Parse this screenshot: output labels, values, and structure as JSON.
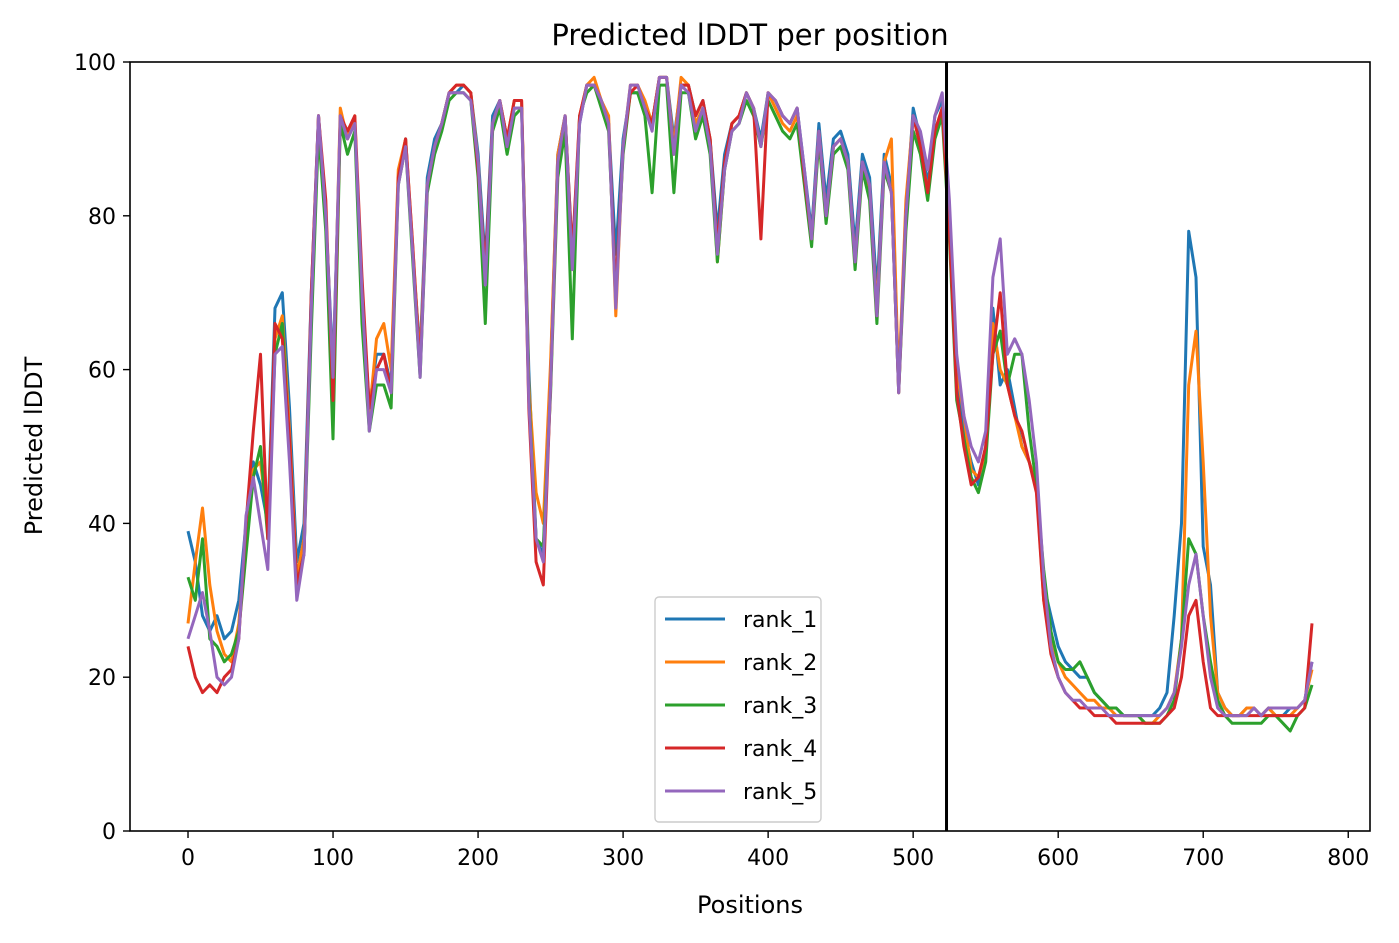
{
  "chart_data": {
    "type": "line",
    "title": "Predicted lDDT per position",
    "xlabel": "Positions",
    "ylabel": "Predicted lDDT",
    "xlim": [
      -40,
      815
    ],
    "ylim": [
      0,
      100
    ],
    "xticks": [
      0,
      100,
      200,
      300,
      400,
      500,
      600,
      700,
      800
    ],
    "yticks": [
      0,
      20,
      40,
      60,
      80,
      100
    ],
    "grid": false,
    "legend_position": "lower-center",
    "vertical_line": {
      "x": 523,
      "color": "#000000"
    },
    "x": [
      0,
      5,
      10,
      15,
      20,
      25,
      30,
      35,
      40,
      45,
      50,
      55,
      60,
      65,
      70,
      75,
      80,
      85,
      90,
      95,
      100,
      105,
      110,
      115,
      120,
      125,
      130,
      135,
      140,
      145,
      150,
      155,
      160,
      165,
      170,
      175,
      180,
      185,
      190,
      195,
      200,
      205,
      210,
      215,
      220,
      225,
      230,
      235,
      240,
      245,
      250,
      255,
      260,
      265,
      270,
      275,
      280,
      285,
      290,
      295,
      300,
      305,
      310,
      315,
      320,
      325,
      330,
      335,
      340,
      345,
      350,
      355,
      360,
      365,
      370,
      375,
      380,
      385,
      390,
      395,
      400,
      405,
      410,
      415,
      420,
      425,
      430,
      435,
      440,
      445,
      450,
      455,
      460,
      465,
      470,
      475,
      480,
      485,
      490,
      495,
      500,
      505,
      510,
      515,
      520,
      525,
      530,
      535,
      540,
      545,
      550,
      555,
      560,
      565,
      570,
      575,
      580,
      585,
      590,
      595,
      600,
      605,
      610,
      615,
      620,
      625,
      630,
      635,
      640,
      645,
      650,
      655,
      660,
      665,
      670,
      675,
      680,
      685,
      690,
      695,
      700,
      705,
      710,
      715,
      720,
      725,
      730,
      735,
      740,
      745,
      750,
      755,
      760,
      765,
      770,
      775
    ],
    "series": [
      {
        "name": "rank_1",
        "color": "#1f77b4",
        "values": [
          39,
          35,
          28,
          26,
          28,
          25,
          26,
          30,
          40,
          48,
          45,
          40,
          68,
          70,
          55,
          35,
          40,
          70,
          93,
          80,
          60,
          92,
          90,
          92,
          70,
          55,
          62,
          62,
          58,
          85,
          90,
          75,
          62,
          85,
          90,
          92,
          96,
          96,
          97,
          96,
          88,
          74,
          93,
          95,
          90,
          94,
          94,
          60,
          38,
          36,
          60,
          88,
          93,
          75,
          92,
          97,
          97,
          95,
          92,
          75,
          90,
          96,
          96,
          94,
          92,
          98,
          98,
          90,
          97,
          97,
          93,
          95,
          90,
          78,
          88,
          92,
          93,
          96,
          94,
          90,
          96,
          95,
          93,
          92,
          94,
          86,
          78,
          92,
          82,
          90,
          91,
          88,
          76,
          88,
          85,
          70,
          88,
          84,
          58,
          80,
          94,
          90,
          84,
          93,
          95,
          80,
          58,
          52,
          48,
          45,
          50,
          68,
          58,
          60,
          55,
          50,
          48,
          45,
          32,
          28,
          24,
          22,
          21,
          20,
          20,
          18,
          17,
          16,
          16,
          15,
          15,
          15,
          15,
          15,
          16,
          18,
          28,
          40,
          78,
          72,
          37,
          32,
          18,
          16,
          15,
          15,
          16,
          16,
          15,
          16,
          15,
          15,
          16,
          16,
          17,
          22
        ]
      },
      {
        "name": "rank_2",
        "color": "#ff7f0e",
        "values": [
          27,
          35,
          42,
          32,
          26,
          23,
          22,
          27,
          38,
          47,
          48,
          40,
          64,
          67,
          52,
          33,
          38,
          68,
          93,
          80,
          58,
          94,
          90,
          93,
          68,
          54,
          64,
          66,
          60,
          86,
          90,
          76,
          61,
          84,
          89,
          92,
          96,
          97,
          97,
          96,
          87,
          72,
          92,
          95,
          90,
          95,
          95,
          58,
          44,
          40,
          61,
          88,
          93,
          73,
          93,
          97,
          98,
          95,
          93,
          67,
          89,
          97,
          97,
          95,
          92,
          98,
          98,
          89,
          98,
          97,
          92,
          94,
          90,
          74,
          86,
          92,
          93,
          96,
          94,
          89,
          96,
          94,
          92,
          91,
          93,
          85,
          77,
          91,
          80,
          89,
          90,
          87,
          74,
          87,
          83,
          68,
          87,
          90,
          58,
          82,
          93,
          89,
          83,
          91,
          94,
          78,
          60,
          54,
          47,
          46,
          49,
          66,
          60,
          58,
          54,
          50,
          48,
          45,
          30,
          25,
          22,
          20,
          19,
          18,
          17,
          17,
          16,
          16,
          15,
          15,
          15,
          15,
          14,
          14,
          15,
          16,
          18,
          25,
          58,
          65,
          48,
          28,
          18,
          16,
          15,
          15,
          16,
          16,
          15,
          16,
          15,
          15,
          15,
          16,
          17,
          21
        ]
      },
      {
        "name": "rank_3",
        "color": "#2ca02c",
        "values": [
          33,
          30,
          38,
          25,
          24,
          22,
          23,
          26,
          36,
          46,
          50,
          38,
          62,
          66,
          50,
          32,
          36,
          65,
          91,
          78,
          51,
          92,
          88,
          91,
          66,
          52,
          58,
          58,
          55,
          84,
          89,
          74,
          59,
          83,
          88,
          91,
          95,
          96,
          96,
          95,
          85,
          66,
          91,
          94,
          88,
          93,
          94,
          57,
          38,
          37,
          57,
          85,
          91,
          64,
          93,
          96,
          97,
          94,
          91,
          70,
          88,
          96,
          96,
          93,
          83,
          97,
          97,
          83,
          96,
          96,
          90,
          93,
          88,
          74,
          86,
          91,
          92,
          95,
          93,
          89,
          95,
          93,
          91,
          90,
          92,
          84,
          76,
          90,
          79,
          88,
          89,
          86,
          73,
          86,
          82,
          66,
          86,
          83,
          57,
          78,
          91,
          88,
          82,
          90,
          93,
          77,
          56,
          51,
          46,
          44,
          48,
          62,
          65,
          58,
          62,
          62,
          52,
          45,
          34,
          26,
          22,
          21,
          21,
          22,
          20,
          18,
          17,
          16,
          16,
          15,
          15,
          15,
          14,
          14,
          14,
          15,
          17,
          25,
          38,
          36,
          28,
          22,
          17,
          15,
          14,
          14,
          14,
          14,
          14,
          15,
          15,
          14,
          13,
          15,
          16,
          19
        ]
      },
      {
        "name": "rank_4",
        "color": "#d62728",
        "values": [
          24,
          20,
          18,
          19,
          18,
          20,
          21,
          25,
          40,
          52,
          62,
          38,
          66,
          64,
          51,
          32,
          36,
          70,
          93,
          82,
          56,
          93,
          91,
          93,
          72,
          55,
          60,
          62,
          57,
          85,
          90,
          76,
          60,
          84,
          89,
          92,
          96,
          97,
          97,
          96,
          86,
          73,
          92,
          95,
          90,
          95,
          95,
          55,
          35,
          32,
          58,
          87,
          93,
          75,
          93,
          97,
          97,
          95,
          92,
          70,
          89,
          96,
          97,
          94,
          92,
          98,
          98,
          88,
          97,
          97,
          93,
          95,
          90,
          76,
          87,
          92,
          93,
          96,
          94,
          77,
          96,
          95,
          93,
          92,
          94,
          85,
          77,
          91,
          80,
          89,
          90,
          87,
          74,
          87,
          84,
          67,
          87,
          83,
          57,
          80,
          93,
          89,
          83,
          91,
          94,
          78,
          57,
          50,
          45,
          46,
          50,
          62,
          70,
          58,
          54,
          52,
          48,
          44,
          30,
          23,
          20,
          18,
          17,
          16,
          16,
          15,
          15,
          15,
          14,
          14,
          14,
          14,
          14,
          14,
          14,
          15,
          16,
          20,
          28,
          30,
          22,
          16,
          15,
          15,
          15,
          15,
          15,
          15,
          15,
          15,
          15,
          15,
          15,
          15,
          16,
          27
        ]
      },
      {
        "name": "rank_5",
        "color": "#9467bd",
        "values": [
          25,
          28,
          31,
          26,
          20,
          19,
          20,
          25,
          41,
          46,
          40,
          34,
          62,
          63,
          48,
          30,
          36,
          68,
          93,
          80,
          59,
          93,
          90,
          92,
          70,
          52,
          60,
          60,
          57,
          84,
          89,
          75,
          59,
          84,
          89,
          92,
          96,
          96,
          96,
          95,
          87,
          71,
          92,
          95,
          89,
          94,
          94,
          56,
          38,
          35,
          58,
          87,
          93,
          73,
          92,
          97,
          97,
          95,
          92,
          68,
          89,
          97,
          97,
          94,
          91,
          98,
          98,
          88,
          97,
          96,
          91,
          94,
          89,
          75,
          86,
          91,
          92,
          96,
          94,
          89,
          96,
          95,
          93,
          92,
          94,
          86,
          77,
          91,
          80,
          89,
          90,
          87,
          74,
          87,
          84,
          67,
          87,
          83,
          57,
          80,
          93,
          91,
          86,
          93,
          96,
          82,
          62,
          54,
          50,
          48,
          52,
          72,
          77,
          62,
          64,
          62,
          56,
          48,
          33,
          24,
          20,
          18,
          17,
          17,
          16,
          16,
          16,
          15,
          15,
          15,
          15,
          15,
          15,
          15,
          15,
          16,
          18,
          24,
          32,
          36,
          28,
          20,
          16,
          15,
          15,
          15,
          15,
          16,
          15,
          16,
          16,
          16,
          16,
          16,
          17,
          22
        ]
      }
    ]
  }
}
